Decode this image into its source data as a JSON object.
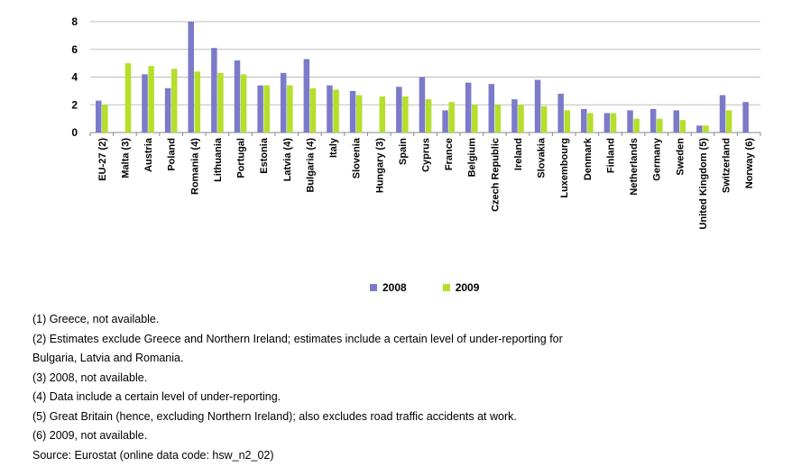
{
  "chart_data": {
    "type": "bar",
    "title": "",
    "xlabel": "",
    "ylabel": "",
    "ylim": [
      0,
      8
    ],
    "yticks": [
      0,
      2,
      4,
      6,
      8
    ],
    "grid": true,
    "legend_position": "bottom-center",
    "categories": [
      "EU-27 (2)",
      "Malta (3)",
      "Austria",
      "Poland",
      "Romania (4)",
      "Lithuania",
      "Portugal",
      "Estonia",
      "Latvia (4)",
      "Bulgaria (4)",
      "Italy",
      "Slovenia",
      "Hungary (3)",
      "Spain",
      "Cyprus",
      "France",
      "Belgium",
      "Czech Republic",
      "Ireland",
      "Slovakia",
      "Luxembourg",
      "Denmark",
      "Finland",
      "Netherlands",
      "Germany",
      "Sweden",
      "United Kingdom (5)",
      "Switzerland",
      "Norway (6)"
    ],
    "series": [
      {
        "name": "2008",
        "color": "#7b7bc9",
        "values": [
          2.3,
          null,
          4.2,
          3.2,
          8.0,
          6.1,
          5.2,
          3.4,
          4.3,
          5.3,
          3.4,
          3.0,
          null,
          3.3,
          4.0,
          1.6,
          3.6,
          3.5,
          2.4,
          3.8,
          2.8,
          1.7,
          1.4,
          1.6,
          1.7,
          1.6,
          0.5,
          2.7,
          2.2
        ]
      },
      {
        "name": "2009",
        "color": "#b4df2a",
        "values": [
          2.0,
          5.0,
          4.8,
          4.6,
          4.4,
          4.3,
          4.2,
          3.4,
          3.4,
          3.2,
          3.1,
          2.7,
          2.6,
          2.6,
          2.4,
          2.2,
          2.0,
          2.0,
          2.0,
          1.9,
          1.6,
          1.4,
          1.4,
          1.0,
          1.0,
          0.9,
          0.5,
          1.6,
          null
        ]
      }
    ]
  },
  "notes": [
    "(1) Greece, not available.",
    "(2) Estimates exclude Greece and Northern Ireland; estimates include a certain level of under-reporting for",
    "Bulgaria, Latvia and Romania.",
    "(3) 2008, not available.",
    "(4) Data include a certain level of under-reporting.",
    "(5) Great Britain (hence, excluding Northern Ireland); also excludes road traffic accidents at work.",
    "(6) 2009, not available.",
    "Source: Eurostat (online data code: hsw_n2_02)"
  ]
}
